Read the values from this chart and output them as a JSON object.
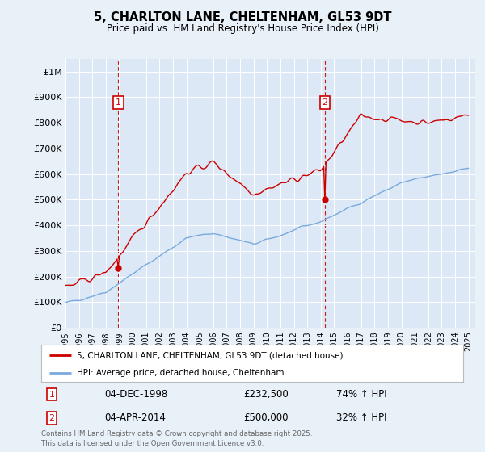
{
  "title": "5, CHARLTON LANE, CHELTENHAM, GL53 9DT",
  "subtitle": "Price paid vs. HM Land Registry's House Price Index (HPI)",
  "background_color": "#e8f0f8",
  "plot_bg_color": "#dce8f5",
  "ylim": [
    0,
    1050000
  ],
  "yticks": [
    0,
    100000,
    200000,
    300000,
    400000,
    500000,
    600000,
    700000,
    800000,
    900000,
    1000000
  ],
  "ytick_labels": [
    "£0",
    "£100K",
    "£200K",
    "£300K",
    "£400K",
    "£500K",
    "£600K",
    "£700K",
    "£800K",
    "£900K",
    "£1M"
  ],
  "legend_label_red": "5, CHARLTON LANE, CHELTENHAM, GL53 9DT (detached house)",
  "legend_label_blue": "HPI: Average price, detached house, Cheltenham",
  "marker1_date_str": "04-DEC-1998",
  "marker1_price": "£232,500",
  "marker1_hpi": "74% ↑ HPI",
  "marker2_date_str": "04-APR-2014",
  "marker2_price": "£500,000",
  "marker2_hpi": "32% ↑ HPI",
  "footer": "Contains HM Land Registry data © Crown copyright and database right 2025.\nThis data is licensed under the Open Government Licence v3.0.",
  "red_color": "#cc0000",
  "blue_color": "#7aaadd",
  "vline_color": "#cc0000",
  "marker_box_color": "#cc0000",
  "grid_color": "#ffffff"
}
